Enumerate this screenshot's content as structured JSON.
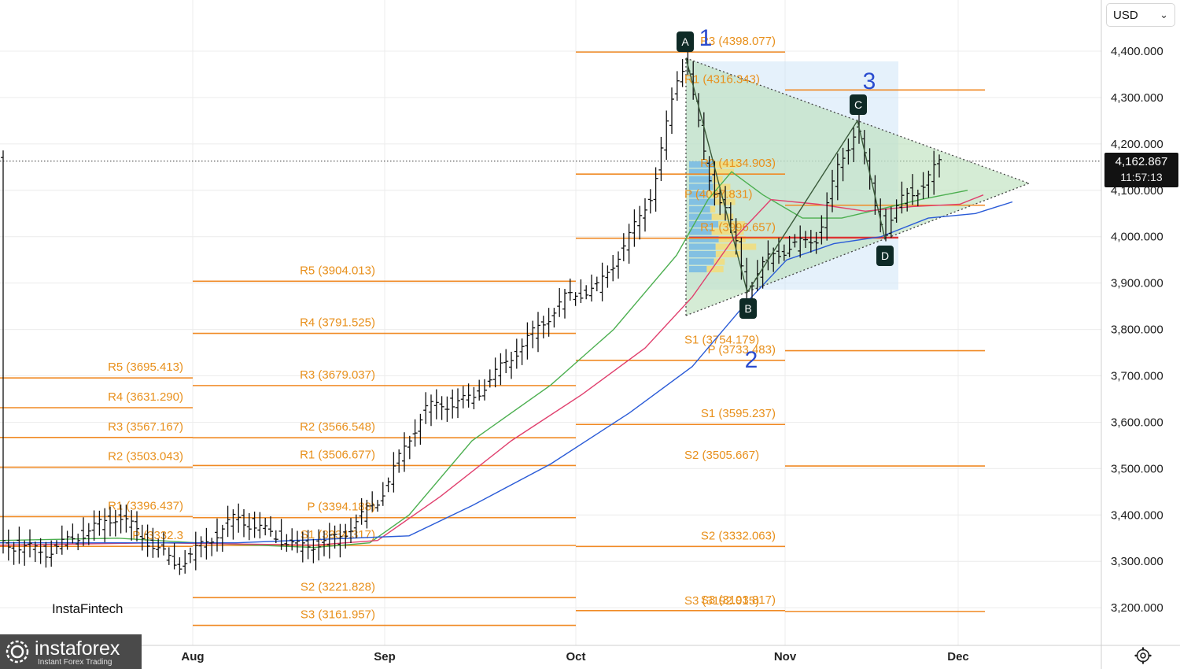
{
  "header": {
    "currency": "USD"
  },
  "current_price": {
    "value": "4,162.867",
    "countdown": "11:57:13"
  },
  "brand": {
    "small": "InstaFintech",
    "name": "instaforex",
    "tagline": "Instant Forex Trading"
  },
  "colors": {
    "pivot": "#f08a24",
    "sma_fast": "#4caf50",
    "sma_mid": "#e0406e",
    "sma_slow": "#2a5bd7",
    "triangle": "#b9dfb9",
    "volume_blue": "#6fb6e6",
    "volume_yellow": "#f3dc7a",
    "wave": "#2a4ccf"
  },
  "chart_data": {
    "type": "ohlc_bar",
    "x_axis": {
      "labels": [
        "Aug",
        "Sep",
        "Oct",
        "Nov",
        "Dec"
      ]
    },
    "y_axis": {
      "labels": [
        "4,400.000",
        "4,300.000",
        "4,200.000",
        "4,100.000",
        "4,000.000",
        "3,900.000",
        "3,800.000",
        "3,700.000",
        "3,600.000",
        "3,500.000",
        "3,400.000",
        "3,300.000",
        "3,200.000"
      ],
      "range": [
        3150,
        4470
      ]
    },
    "current_price": 4162.867,
    "pivot_levels": [
      {
        "label": "R1 (3396.437)",
        "value": 3396.437,
        "period": "Jul"
      },
      {
        "label": "R2 (3503.043)",
        "value": 3503.043,
        "period": "Jul"
      },
      {
        "label": "R3 (3567.167)",
        "value": 3567.167,
        "period": "Jul"
      },
      {
        "label": "R4 (3631.290)",
        "value": 3631.29,
        "period": "Jul"
      },
      {
        "label": "R5 (3695.413)",
        "value": 3695.413,
        "period": "Jul"
      },
      {
        "label": "P (3332.3",
        "value": 3332.3,
        "period": "Jul"
      },
      {
        "label": "S3 (3161.957)",
        "value": 3161.957,
        "period": "Aug"
      },
      {
        "label": "S2 (3221.828)",
        "value": 3221.828,
        "period": "Aug"
      },
      {
        "label": "S1 (3334.317)",
        "value": 3334.317,
        "period": "Aug"
      },
      {
        "label": "P (3394.188)",
        "value": 3394.188,
        "period": "Aug"
      },
      {
        "label": "R1 (3506.677)",
        "value": 3506.677,
        "period": "Aug"
      },
      {
        "label": "R2 (3566.548)",
        "value": 3566.548,
        "period": "Aug"
      },
      {
        "label": "R3 (3679.037)",
        "value": 3679.037,
        "period": "Aug"
      },
      {
        "label": "R4 (3791.525)",
        "value": 3791.525,
        "period": "Aug"
      },
      {
        "label": "R5 (3904.013)",
        "value": 3904.013,
        "period": "Aug"
      },
      {
        "label": "S3 (3193.817)",
        "value": 3193.817,
        "period": "Sep"
      },
      {
        "label": "S2 (3332.063)",
        "value": 3332.063,
        "period": "Sep"
      },
      {
        "label": "S1 (3595.237)",
        "value": 3595.237,
        "period": "Sep"
      },
      {
        "label": "P (3733.483)",
        "value": 3733.483,
        "period": "Sep"
      },
      {
        "label": "R1 (3996.657)",
        "value": 3996.657,
        "period": "Sep"
      },
      {
        "label": "R2 (4134.903)",
        "value": 4134.903,
        "period": "Sep"
      },
      {
        "label": "R3 (4398.077)",
        "value": 4398.077,
        "period": "Sep"
      },
      {
        "label": "S3 (3192.015)",
        "value": 3192.015,
        "period": "Oct"
      },
      {
        "label": "S2 (3505.667)",
        "value": 3505.667,
        "period": "Oct"
      },
      {
        "label": "S1 (3754.179)",
        "value": 3754.179,
        "period": "Oct"
      },
      {
        "label": "P (4067.831)",
        "value": 4067.831,
        "period": "Oct"
      },
      {
        "label": "R1 (4316.343)",
        "value": 4316.343,
        "period": "Oct"
      }
    ],
    "pattern_points": [
      {
        "label": "A",
        "value": 4385
      },
      {
        "label": "B",
        "value": 3880
      },
      {
        "label": "C",
        "value": 4250
      },
      {
        "label": "D",
        "value": 3995
      }
    ],
    "wave_labels": [
      "1",
      "2",
      "3"
    ]
  }
}
